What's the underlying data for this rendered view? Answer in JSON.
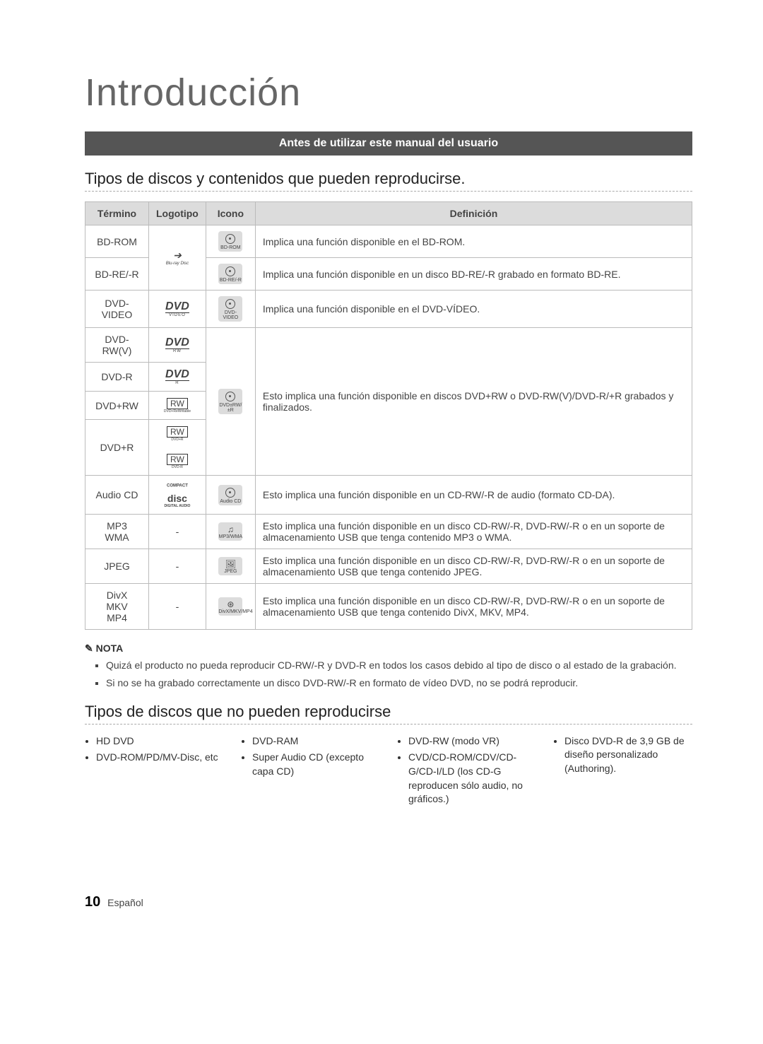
{
  "title": "Introducción",
  "banner": "Antes de utilizar este manual del usuario",
  "section1_title": "Tipos de discos y contenidos que pueden reproducirse.",
  "section2_title": "Tipos de discos que no pueden reproducirse",
  "table": {
    "headers": {
      "term": "Término",
      "logo": "Logotipo",
      "icon": "Icono",
      "def": "Definición"
    },
    "rows": {
      "bdrom": {
        "term": "BD-ROM",
        "icon_label": "BD-ROM",
        "def": "Implica una función disponible en el BD-ROM."
      },
      "bdre": {
        "term": "BD-RE/-R",
        "icon_label": "BD-RE/-R",
        "def": "Implica una función disponible en un disco BD-RE/-R grabado en formato BD-RE."
      },
      "dvdvideo": {
        "term": "DVD-VIDEO",
        "icon_label": "DVD-VIDEO",
        "def": "Implica una función disponible en el DVD-VÍDEO."
      },
      "dvdrwv": {
        "term": "DVD-RW(V)"
      },
      "dvdr": {
        "term": "DVD-R"
      },
      "dvdprw": {
        "term": "DVD+RW",
        "icon_label": "DVD±RW/±R"
      },
      "dvdpr": {
        "term": "DVD+R"
      },
      "dvd_group_def": "Esto implica una función disponible en discos DVD+RW o DVD-RW(V)/DVD-R/+R grabados y finalizados.",
      "audiocd": {
        "term": "Audio CD",
        "icon_label": "Audio CD",
        "def": "Esto implica una función disponible en un CD-RW/-R de audio (formato CD-DA)."
      },
      "mp3": {
        "term": "MP3\nWMA",
        "logo": "-",
        "icon_label": "MP3/WMA",
        "def": "Esto implica una función disponible en un disco CD-RW/-R, DVD-RW/-R o en un soporte de almacenamiento USB que tenga contenido MP3 o WMA."
      },
      "jpeg": {
        "term": "JPEG",
        "logo": "-",
        "icon_label": "JPEG",
        "def": "Esto implica una función disponible en un disco CD-RW/-R, DVD-RW/-R o en un soporte de almacenamiento USB que tenga contenido JPEG."
      },
      "divx": {
        "term": "DivX\nMKV\nMP4",
        "logo": "-",
        "icon_label": "DivX/MKV/MP4",
        "def": "Esto implica una función disponible en un disco CD-RW/-R, DVD-RW/-R o en un soporte de almacenamiento USB que tenga contenido DivX, MKV, MP4."
      }
    },
    "logo_text": {
      "bluray_main": "Blu-ray Disc",
      "dvd": "DVD",
      "dvd_video": "VIDEO",
      "dvd_rw": "RW",
      "dvd_r": "R",
      "rw": "RW",
      "rw_sub1": "DVD+ReWritable",
      "rw_sub2": "DVD+R",
      "rw_sub3": "DVD-R",
      "cd_main": "disc",
      "cd_sup": "COMPACT",
      "cd_sub": "DIGITAL AUDIO"
    }
  },
  "nota": {
    "label": "NOTA",
    "items": [
      "Quizá el producto no pueda reproducir CD-RW/-R y DVD-R en todos los casos debido al tipo de disco o al estado de la grabación.",
      "Si no se ha grabado correctamente un disco DVD-RW/-R en formato de vídeo DVD, no se podrá reproducir."
    ]
  },
  "cannot_play_cols": [
    [
      "HD DVD",
      "DVD-ROM/PD/MV-Disc, etc"
    ],
    [
      "DVD-RAM",
      "Super Audio CD (excepto capa CD)"
    ],
    [
      "DVD-RW (modo VR)",
      "CVD/CD-ROM/CDV/CD-G/CD-I/LD (los CD-G reproducen sólo audio, no gráficos.)"
    ],
    [
      "Disco DVD-R de 3,9 GB de diseño personalizado (Authoring)."
    ]
  ],
  "footer": {
    "page": "10",
    "lang": "Español"
  },
  "colors": {
    "banner_bg": "#555555",
    "header_bg": "#dcdcdc",
    "border": "#bbbbbb"
  }
}
